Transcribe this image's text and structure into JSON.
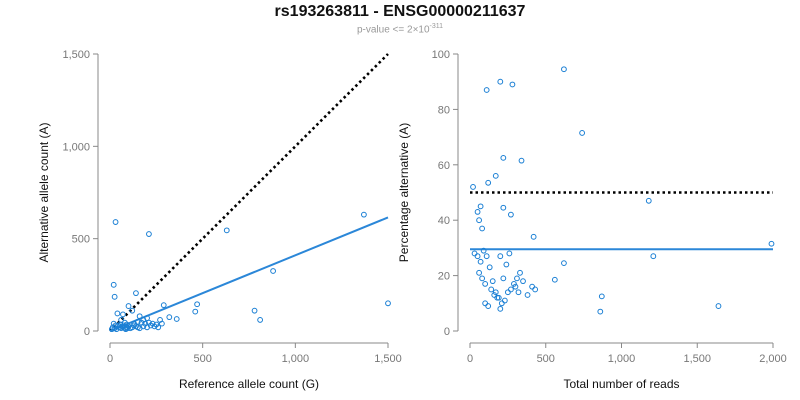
{
  "chart_title": "rs193263811 - ENSG00000211637",
  "subtitle": {
    "prefix": "p-value <= 2×10",
    "exponent": "-311"
  },
  "colors": {
    "points": "#1a7fd4",
    "fit": "#2b87d8",
    "reference": "#000000"
  },
  "chart_data": [
    {
      "type": "scatter",
      "xlabel": "Reference allele count (G)",
      "ylabel": "Alternative allele count (A)",
      "xlim": [
        0,
        1500
      ],
      "ylim": [
        0,
        1500
      ],
      "xticks": [
        0,
        500,
        1000,
        1500
      ],
      "xtick_labels": [
        "0",
        "500",
        "1,000",
        "1,500"
      ],
      "yticks": [
        0,
        500,
        1000,
        1500
      ],
      "ytick_labels": [
        "0",
        "500",
        "1,000",
        "1,500"
      ],
      "grid": false,
      "reference_line": {
        "style": "dotted",
        "x": [
          0,
          1500
        ],
        "y": [
          0,
          1500
        ]
      },
      "fit_line": {
        "style": "solid",
        "x": [
          0,
          1500
        ],
        "y": [
          0,
          615
        ]
      },
      "points": [
        [
          30,
          590
        ],
        [
          210,
          525
        ],
        [
          630,
          545
        ],
        [
          1370,
          630
        ],
        [
          1500,
          150
        ],
        [
          880,
          325
        ],
        [
          20,
          250
        ],
        [
          25,
          185
        ],
        [
          140,
          205
        ],
        [
          780,
          110
        ],
        [
          810,
          60
        ],
        [
          470,
          145
        ],
        [
          460,
          105
        ],
        [
          290,
          140
        ],
        [
          320,
          75
        ],
        [
          360,
          65
        ],
        [
          100,
          135
        ],
        [
          120,
          110
        ],
        [
          70,
          90
        ],
        [
          40,
          95
        ],
        [
          60,
          60
        ],
        [
          80,
          45
        ],
        [
          90,
          35
        ],
        [
          130,
          40
        ],
        [
          150,
          50
        ],
        [
          170,
          45
        ],
        [
          190,
          40
        ],
        [
          210,
          45
        ],
        [
          230,
          40
        ],
        [
          250,
          35
        ],
        [
          270,
          60
        ],
        [
          280,
          40
        ],
        [
          200,
          70
        ],
        [
          160,
          80
        ],
        [
          180,
          60
        ],
        [
          20,
          40
        ],
        [
          30,
          30
        ],
        [
          40,
          25
        ],
        [
          50,
          20
        ],
        [
          60,
          15
        ],
        [
          70,
          20
        ],
        [
          80,
          15
        ],
        [
          90,
          20
        ],
        [
          100,
          25
        ],
        [
          110,
          15
        ],
        [
          120,
          20
        ],
        [
          130,
          30
        ],
        [
          140,
          25
        ],
        [
          150,
          20
        ],
        [
          160,
          15
        ],
        [
          10,
          10
        ],
        [
          15,
          20
        ],
        [
          25,
          15
        ],
        [
          35,
          10
        ],
        [
          45,
          30
        ],
        [
          55,
          35
        ],
        [
          65,
          25
        ],
        [
          75,
          30
        ],
        [
          85,
          10
        ],
        [
          95,
          15
        ],
        [
          180,
          25
        ],
        [
          200,
          20
        ],
        [
          220,
          30
        ],
        [
          240,
          25
        ],
        [
          260,
          20
        ]
      ]
    },
    {
      "type": "scatter",
      "xlabel": "Total number of reads",
      "ylabel": "Percentage alternative (A)",
      "xlim": [
        0,
        2000
      ],
      "ylim": [
        0,
        100
      ],
      "xticks": [
        0,
        500,
        1000,
        1500,
        2000
      ],
      "xtick_labels": [
        "0",
        "500",
        "1,000",
        "1,500",
        "2,000"
      ],
      "yticks": [
        0,
        20,
        40,
        60,
        80,
        100
      ],
      "ytick_labels": [
        "0",
        "20",
        "40",
        "60",
        "80",
        "100"
      ],
      "grid": false,
      "reference_line": {
        "style": "dotted",
        "x": [
          0,
          2000
        ],
        "y": [
          50,
          50
        ]
      },
      "fit_line": {
        "style": "solid",
        "x": [
          0,
          2000
        ],
        "y": [
          29.5,
          29.5
        ]
      },
      "points": [
        [
          620,
          94.5
        ],
        [
          200,
          90
        ],
        [
          280,
          89
        ],
        [
          110,
          87
        ],
        [
          740,
          71.5
        ],
        [
          220,
          62.5
        ],
        [
          340,
          61.5
        ],
        [
          170,
          56
        ],
        [
          120,
          53.5
        ],
        [
          20,
          52
        ],
        [
          1180,
          47
        ],
        [
          220,
          44.5
        ],
        [
          270,
          42
        ],
        [
          50,
          43
        ],
        [
          70,
          45
        ],
        [
          60,
          40
        ],
        [
          80,
          37
        ],
        [
          420,
          34
        ],
        [
          1990,
          31.5
        ],
        [
          30,
          28
        ],
        [
          50,
          27
        ],
        [
          70,
          25
        ],
        [
          90,
          29
        ],
        [
          110,
          27
        ],
        [
          130,
          23
        ],
        [
          150,
          18
        ],
        [
          170,
          14
        ],
        [
          190,
          12
        ],
        [
          210,
          10
        ],
        [
          230,
          11
        ],
        [
          250,
          14
        ],
        [
          270,
          15
        ],
        [
          290,
          17
        ],
        [
          310,
          19
        ],
        [
          330,
          21
        ],
        [
          350,
          18
        ],
        [
          380,
          13
        ],
        [
          410,
          16
        ],
        [
          430,
          15
        ],
        [
          560,
          18.5
        ],
        [
          620,
          24.5
        ],
        [
          1210,
          27
        ],
        [
          870,
          12.5
        ],
        [
          860,
          7
        ],
        [
          1640,
          9
        ],
        [
          200,
          8
        ],
        [
          100,
          10
        ],
        [
          120,
          9
        ],
        [
          60,
          21
        ],
        [
          80,
          19
        ],
        [
          100,
          17
        ],
        [
          140,
          15
        ],
        [
          160,
          13
        ],
        [
          180,
          12
        ],
        [
          240,
          24
        ],
        [
          260,
          28
        ],
        [
          300,
          16
        ],
        [
          320,
          14
        ],
        [
          200,
          27
        ],
        [
          220,
          19
        ]
      ]
    }
  ]
}
